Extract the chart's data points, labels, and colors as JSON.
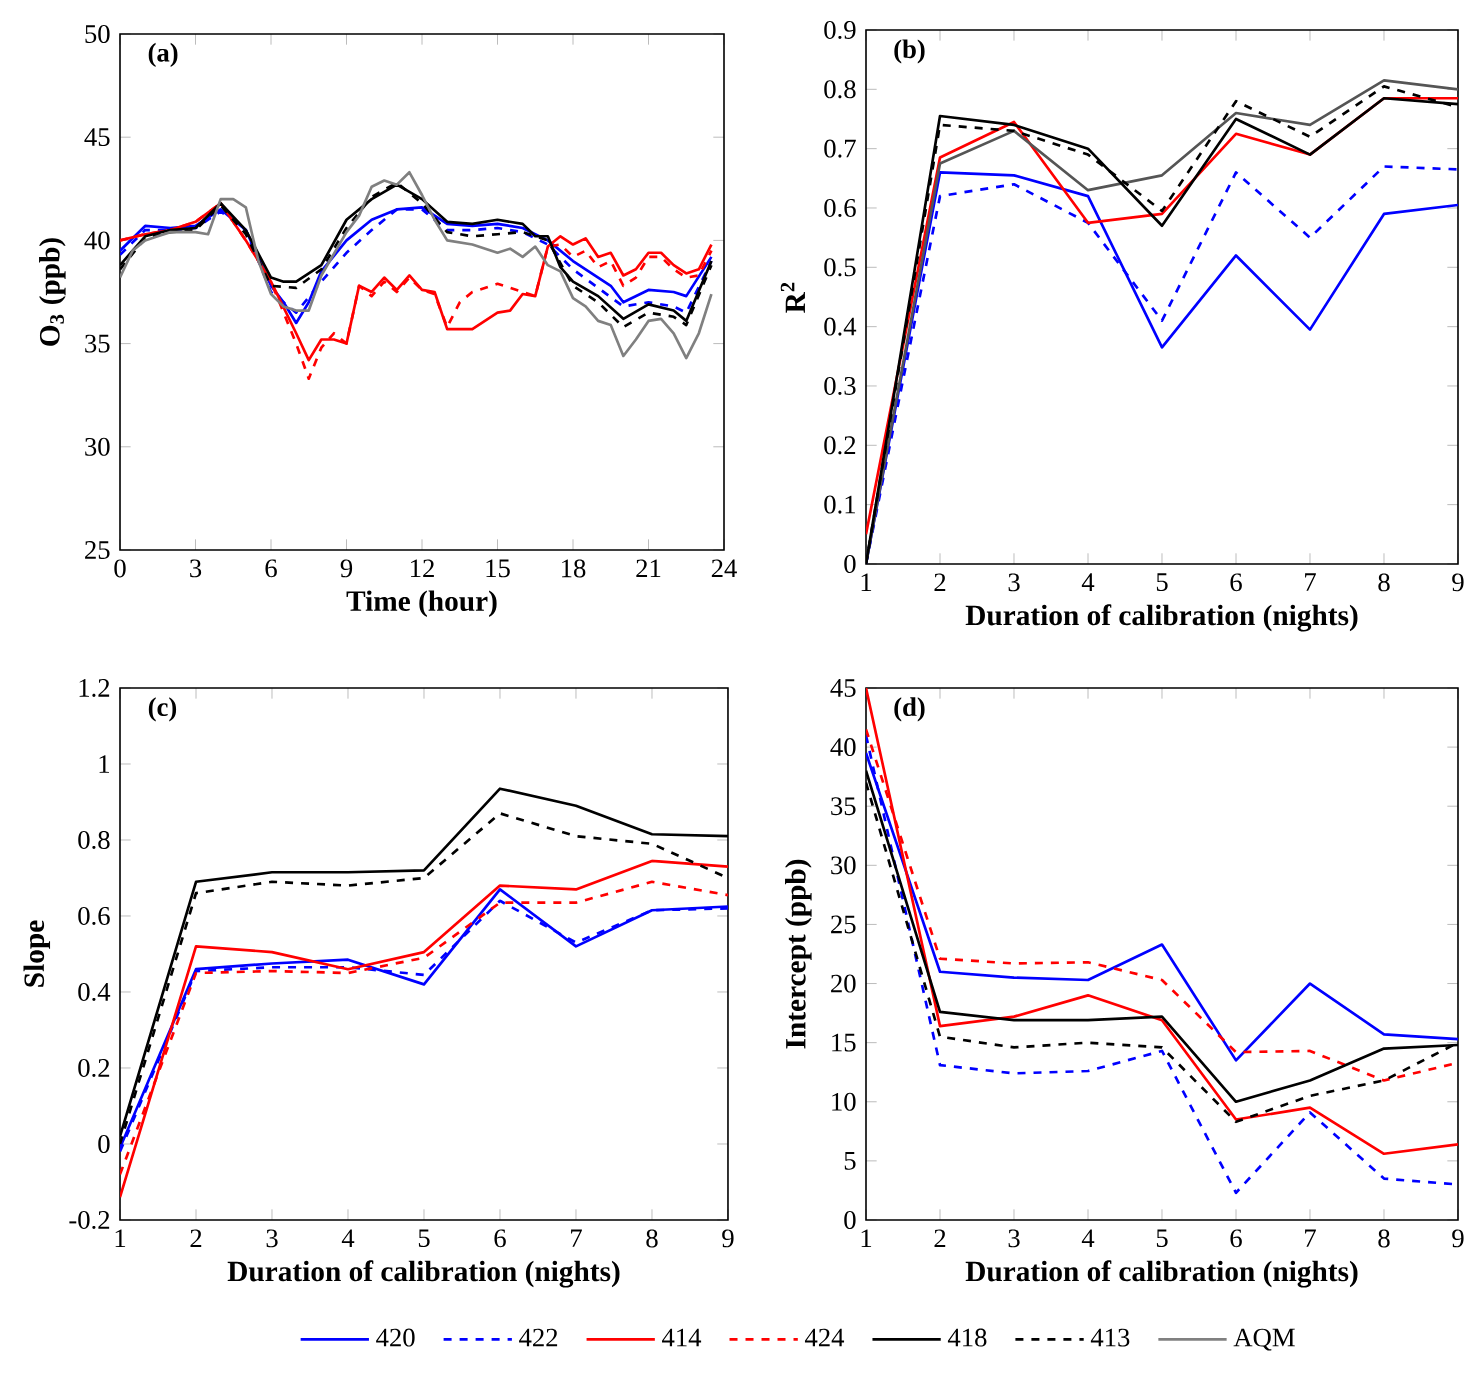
{
  "chart_data": [
    {
      "type": "line",
      "title": "(a)",
      "xlabel": "Time (hour)",
      "ylabel": "O$_{3}$ (ppb)",
      "xlim": [
        0,
        24
      ],
      "ylim": [
        25,
        50
      ],
      "xticks": [
        0,
        3,
        6,
        9,
        12,
        15,
        18,
        21,
        24
      ],
      "yticks": [
        25,
        30,
        35,
        40,
        45,
        50
      ],
      "legend": "bottom",
      "series": [
        {
          "name": "420",
          "color": "#0000ff",
          "line_style": "solid",
          "x": [
            0,
            1,
            2,
            3,
            4,
            5,
            6,
            6.5,
            7,
            7.5,
            8,
            9,
            10,
            11,
            12,
            13,
            14,
            15,
            16,
            17,
            18,
            19,
            19.5,
            20,
            21,
            22,
            22.5,
            23.5
          ],
          "values": [
            39.5,
            40.7,
            40.6,
            40.7,
            41.5,
            40.5,
            37.8,
            37,
            36,
            37,
            38.5,
            40,
            41,
            41.5,
            41.6,
            40.8,
            40.7,
            40.8,
            40.6,
            40,
            39,
            38.2,
            37.8,
            37,
            37.6,
            37.5,
            37.3,
            39.2
          ]
        },
        {
          "name": "422",
          "color": "#0000ff",
          "line_style": "dashed",
          "x": [
            0,
            1,
            2,
            3,
            4,
            5,
            6,
            7,
            8,
            9,
            10,
            11,
            12,
            13,
            14,
            15,
            16,
            17,
            18,
            19,
            20,
            21,
            22,
            22.5,
            23.5
          ],
          "values": [
            39.3,
            40.5,
            40.5,
            40.6,
            41.4,
            40.5,
            37.5,
            36.5,
            38,
            39.4,
            40.5,
            41.5,
            41.5,
            40.5,
            40.5,
            40.6,
            40.4,
            39.8,
            38.6,
            37.7,
            36.8,
            37,
            36.8,
            36.5,
            39
          ]
        },
        {
          "name": "414",
          "color": "#ff0000",
          "line_style": "solid",
          "x": [
            0,
            1,
            2,
            3,
            4,
            5,
            6,
            7,
            7.5,
            8,
            8.5,
            9,
            9.5,
            10,
            10.5,
            11,
            11.5,
            12,
            12.5,
            13,
            14,
            15,
            15.5,
            16,
            16.5,
            17,
            17.5,
            18,
            18.5,
            19,
            19.5,
            20,
            20.5,
            21,
            21.5,
            22,
            22.5,
            23,
            23.5
          ],
          "values": [
            40,
            40.3,
            40.5,
            40.9,
            41.8,
            40,
            38,
            35.5,
            34.2,
            35.2,
            35.2,
            35,
            37.8,
            37.5,
            38.2,
            37.6,
            38.3,
            37.6,
            37.5,
            35.7,
            35.7,
            36.5,
            36.6,
            37.4,
            37.3,
            39.7,
            40.2,
            39.8,
            40.1,
            39.2,
            39.4,
            38.3,
            38.6,
            39.4,
            39.4,
            38.8,
            38.4,
            38.6,
            39.8
          ]
        },
        {
          "name": "424",
          "color": "#ff0000",
          "line_style": "dashed",
          "x": [
            0,
            1,
            2,
            3,
            4,
            5,
            6,
            7,
            7.5,
            8,
            8.5,
            9,
            9.5,
            10,
            10.5,
            11,
            11.5,
            12,
            12.5,
            13,
            13.5,
            14,
            15,
            15.5,
            16,
            16.5,
            17,
            17.5,
            18,
            18.5,
            19,
            19.5,
            20,
            20.5,
            21,
            21.5,
            22,
            22.5,
            23,
            23.5
          ],
          "values": [
            40,
            40.3,
            40.5,
            40.9,
            41.8,
            40,
            38,
            35,
            33.3,
            34.8,
            35.5,
            35,
            37.8,
            37.3,
            38,
            37.5,
            38.2,
            37.6,
            37.4,
            35.8,
            37,
            37.5,
            37.9,
            37.7,
            37.5,
            37.3,
            39.7,
            39.8,
            39.2,
            39.5,
            38.7,
            39,
            37.8,
            38.2,
            39.2,
            39.2,
            38.6,
            38.2,
            38.3,
            39.5
          ]
        },
        {
          "name": "418",
          "color": "#000000",
          "line_style": "solid",
          "x": [
            0,
            1,
            2,
            3,
            4,
            5,
            6,
            6.5,
            7,
            8,
            9,
            10,
            11,
            12,
            13,
            14,
            15,
            16,
            16.5,
            17,
            17.5,
            18,
            19,
            20,
            21,
            22,
            22.5,
            23.5
          ],
          "values": [
            38.8,
            40.2,
            40.5,
            40.6,
            41.8,
            40.5,
            38.2,
            38,
            38,
            38.8,
            41,
            42,
            42.7,
            42,
            40.9,
            40.8,
            41,
            40.8,
            40.2,
            40.2,
            38.7,
            38,
            37.3,
            36.2,
            36.9,
            36.6,
            36.1,
            39
          ]
        },
        {
          "name": "413",
          "color": "#000000",
          "line_style": "dashed",
          "x": [
            0,
            1,
            2,
            3,
            4,
            5,
            6,
            7,
            8,
            9,
            10,
            11,
            12,
            13,
            14,
            15,
            16,
            17,
            18,
            19,
            20,
            21,
            22,
            22.5,
            23.5
          ],
          "values": [
            38.6,
            40.1,
            40.4,
            40.5,
            41.7,
            40.3,
            37.8,
            37.7,
            38.6,
            40.6,
            42.1,
            42.8,
            41.8,
            40.4,
            40.2,
            40.3,
            40.4,
            40,
            37.8,
            37,
            35.8,
            36.5,
            36.3,
            35.9,
            38.8
          ]
        },
        {
          "name": "AQM",
          "color": "#808080",
          "line_style": "solid",
          "x": [
            0,
            0.5,
            1,
            1.5,
            2,
            3,
            3.5,
            4,
            4.5,
            5,
            5.5,
            6,
            6.5,
            7,
            7.5,
            8,
            9,
            9.5,
            10,
            10.5,
            11,
            11.5,
            12,
            12.5,
            13,
            14,
            15,
            15.5,
            16,
            16.5,
            17,
            17.5,
            18,
            18.5,
            19,
            19.5,
            20,
            20.5,
            21,
            21.5,
            22,
            22.5,
            23,
            23.5
          ],
          "values": [
            38.2,
            39.5,
            40,
            40.2,
            40.4,
            40.4,
            40.3,
            42,
            42,
            41.6,
            39,
            37.4,
            36.8,
            36.6,
            36.6,
            38.3,
            40.4,
            41.2,
            42.6,
            42.9,
            42.7,
            43.3,
            42.2,
            41,
            40,
            39.8,
            39.4,
            39.6,
            39.2,
            39.7,
            38.8,
            38.5,
            37.2,
            36.8,
            36.1,
            35.9,
            34.4,
            35.2,
            36.1,
            36.2,
            35.5,
            34.3,
            35.5,
            37.4
          ]
        }
      ]
    },
    {
      "type": "line",
      "title": "(b)",
      "xlabel": "Duration of calibration (nights)",
      "ylabel": "R$^{2}$",
      "xlim": [
        1,
        9
      ],
      "ylim": [
        0,
        0.9
      ],
      "xticks": [
        1,
        2,
        3,
        4,
        5,
        6,
        7,
        8,
        9
      ],
      "yticks": [
        0,
        0.1,
        0.2,
        0.3,
        0.4,
        0.5,
        0.6,
        0.7,
        0.8,
        0.9
      ],
      "x": [
        1,
        2,
        3,
        4,
        5,
        6,
        7,
        8,
        9
      ],
      "series": [
        {
          "name": "420",
          "color": "#0000ff",
          "line_style": "solid",
          "values": [
            0,
            0.66,
            0.655,
            0.62,
            0.365,
            0.52,
            0.395,
            0.59,
            0.605
          ]
        },
        {
          "name": "422",
          "color": "#0000ff",
          "line_style": "dashed",
          "values": [
            0,
            0.62,
            0.64,
            0.575,
            0.41,
            0.66,
            0.55,
            0.67,
            0.665
          ]
        },
        {
          "name": "414",
          "color": "#ff0000",
          "line_style": "solid",
          "values": [
            0.05,
            0.685,
            0.745,
            0.575,
            0.59,
            0.725,
            0.69,
            0.785,
            0.785
          ]
        },
        {
          "color": "#555555",
          "line_style": "solid",
          "values": [
            0,
            0.675,
            0.73,
            0.63,
            0.655,
            0.76,
            0.74,
            0.815,
            0.8
          ]
        },
        {
          "name": "418",
          "color": "#000000",
          "line_style": "solid",
          "values": [
            0,
            0.755,
            0.74,
            0.7,
            0.57,
            0.75,
            0.69,
            0.785,
            0.775
          ]
        },
        {
          "name": "413",
          "color": "#000000",
          "line_style": "dashed",
          "values": [
            0,
            0.74,
            0.73,
            0.69,
            0.595,
            0.78,
            0.72,
            0.805,
            0.77
          ]
        }
      ]
    },
    {
      "type": "line",
      "title": "(c)",
      "xlabel": "Duration of calibration (nights)",
      "ylabel": "Slope",
      "xlim": [
        1,
        9
      ],
      "ylim": [
        -0.2,
        1.2
      ],
      "xticks": [
        1,
        2,
        3,
        4,
        5,
        6,
        7,
        8,
        9
      ],
      "yticks": [
        -0.2,
        0,
        0.2,
        0.4,
        0.6,
        0.8,
        1,
        1.2
      ],
      "x": [
        1,
        2,
        3,
        4,
        5,
        6,
        7,
        8,
        9
      ],
      "series": [
        {
          "name": "420",
          "color": "#0000ff",
          "line_style": "solid",
          "values": [
            -0.01,
            0.46,
            0.475,
            0.485,
            0.42,
            0.67,
            0.52,
            0.615,
            0.625
          ]
        },
        {
          "name": "422",
          "color": "#0000ff",
          "line_style": "dashed",
          "values": [
            -0.02,
            0.455,
            0.465,
            0.465,
            0.445,
            0.64,
            0.53,
            0.615,
            0.62
          ]
        },
        {
          "name": "414",
          "color": "#ff0000",
          "line_style": "solid",
          "values": [
            -0.14,
            0.52,
            0.505,
            0.46,
            0.505,
            0.68,
            0.67,
            0.745,
            0.73
          ]
        },
        {
          "name": "424",
          "color": "#ff0000",
          "line_style": "dashed",
          "values": [
            -0.08,
            0.45,
            0.455,
            0.45,
            0.49,
            0.635,
            0.635,
            0.69,
            0.655
          ]
        },
        {
          "name": "418",
          "color": "#000000",
          "line_style": "solid",
          "values": [
            0.02,
            0.69,
            0.715,
            0.715,
            0.72,
            0.935,
            0.89,
            0.815,
            0.81
          ]
        },
        {
          "name": "413",
          "color": "#000000",
          "line_style": "dashed",
          "values": [
            0,
            0.66,
            0.69,
            0.68,
            0.7,
            0.87,
            0.81,
            0.79,
            0.7
          ]
        }
      ]
    },
    {
      "type": "line",
      "title": "(d)",
      "xlabel": "Duration of calibration (nights)",
      "ylabel": "Intercept (ppb)",
      "xlim": [
        1,
        9
      ],
      "ylim": [
        0,
        45
      ],
      "xticks": [
        1,
        2,
        3,
        4,
        5,
        6,
        7,
        8,
        9
      ],
      "yticks": [
        0,
        5,
        10,
        15,
        20,
        25,
        30,
        35,
        40,
        45
      ],
      "x": [
        1,
        2,
        3,
        4,
        5,
        6,
        7,
        8,
        9
      ],
      "series": [
        {
          "name": "420",
          "color": "#0000ff",
          "line_style": "solid",
          "values": [
            39.5,
            21,
            20.5,
            20.3,
            23.3,
            13.5,
            20,
            15.7,
            15.3
          ]
        },
        {
          "name": "422",
          "color": "#0000ff",
          "line_style": "dashed",
          "values": [
            41,
            13.1,
            12.4,
            12.6,
            14.3,
            2.3,
            9.1,
            3.5,
            3
          ]
        },
        {
          "name": "414",
          "color": "#ff0000",
          "line_style": "solid",
          "values": [
            45,
            16.4,
            17.2,
            19,
            16.9,
            8.5,
            9.5,
            5.6,
            6.4
          ]
        },
        {
          "name": "424",
          "color": "#ff0000",
          "line_style": "dashed",
          "values": [
            41.5,
            22.1,
            21.7,
            21.8,
            20.3,
            14.2,
            14.3,
            11.8,
            13.3
          ]
        },
        {
          "name": "418",
          "color": "#000000",
          "line_style": "solid",
          "values": [
            38,
            17.6,
            16.9,
            16.9,
            17.2,
            10,
            11.8,
            14.5,
            14.8
          ]
        },
        {
          "name": "413",
          "color": "#000000",
          "line_style": "dashed",
          "values": [
            37,
            15.5,
            14.6,
            15,
            14.6,
            8.3,
            10.5,
            11.8,
            15
          ]
        }
      ]
    }
  ]
}
